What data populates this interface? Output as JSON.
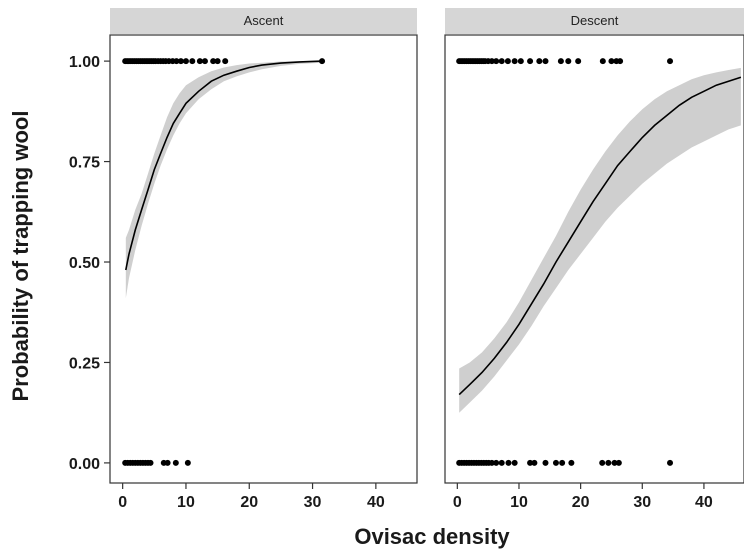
{
  "chart_data": {
    "type": "scatter",
    "xlabel": "Ovisac density",
    "ylabel": "Probability of trapping wool",
    "xlim": [
      -2,
      46.5
    ],
    "ylim": [
      -0.05,
      1.065
    ],
    "x_ticks": [
      0,
      10,
      20,
      30,
      40
    ],
    "x_tick_labels": [
      "0",
      "10",
      "20",
      "30",
      "40"
    ],
    "y_ticks": [
      0,
      0.25,
      0.5,
      0.75,
      1
    ],
    "y_tick_labels": [
      "0.00",
      "0.25",
      "0.50",
      "0.75",
      "1.00"
    ],
    "grid": false,
    "legend": "none",
    "colors": {
      "points": "#000000",
      "fit_line": "#000000",
      "ribbon": "#cfcfcf",
      "strip": "#d6d6d6",
      "panel_border": "#333333"
    },
    "panels": [
      {
        "strip_label": "Ascent",
        "points_y1": [
          0.4,
          0.7,
          1.0,
          1.3,
          1.6,
          1.9,
          2.2,
          2.5,
          2.8,
          3.1,
          3.4,
          3.7,
          4.0,
          4.3,
          4.6,
          4.9,
          5.2,
          5.6,
          6.0,
          6.4,
          6.8,
          7.3,
          7.9,
          8.5,
          9.2,
          10.0,
          11.0,
          12.2,
          13.0,
          14.3,
          15.0,
          16.2,
          31.5
        ],
        "points_y0": [
          0.4,
          0.8,
          1.2,
          1.6,
          2.0,
          2.4,
          2.8,
          3.2,
          3.6,
          4.0,
          4.4,
          6.5,
          7.1,
          8.4,
          10.3
        ],
        "fit": {
          "x": [
            0.5,
            1,
            2,
            3,
            4,
            5,
            6,
            7,
            8,
            9,
            10,
            12,
            14,
            16,
            18,
            20,
            22,
            25,
            28,
            31.5
          ],
          "y": [
            0.48,
            0.52,
            0.58,
            0.63,
            0.68,
            0.73,
            0.77,
            0.81,
            0.845,
            0.87,
            0.895,
            0.925,
            0.95,
            0.965,
            0.975,
            0.984,
            0.99,
            0.995,
            0.998,
            1.0
          ],
          "lower": [
            0.41,
            0.46,
            0.53,
            0.59,
            0.645,
            0.695,
            0.74,
            0.78,
            0.815,
            0.845,
            0.87,
            0.905,
            0.93,
            0.95,
            0.962,
            0.972,
            0.98,
            0.988,
            0.993,
            0.996
          ],
          "upper": [
            0.56,
            0.58,
            0.63,
            0.67,
            0.72,
            0.77,
            0.815,
            0.86,
            0.895,
            0.92,
            0.94,
            0.96,
            0.975,
            0.984,
            0.99,
            0.994,
            0.996,
            0.999,
            1.0,
            1.0
          ]
        }
      },
      {
        "strip_label": "Descent",
        "points_y1": [
          0.3,
          0.6,
          0.9,
          1.2,
          1.5,
          1.8,
          2.1,
          2.4,
          2.7,
          3.0,
          3.3,
          3.6,
          3.9,
          4.2,
          4.5,
          5.0,
          5.6,
          6.3,
          7.2,
          8.2,
          9.3,
          10.3,
          11.8,
          13.3,
          14.3,
          16.8,
          18.0,
          19.6,
          23.6,
          25.0,
          25.8,
          26.4,
          34.5
        ],
        "points_y0": [
          0.3,
          0.7,
          1.1,
          1.5,
          1.9,
          2.3,
          2.7,
          3.1,
          3.5,
          3.9,
          4.3,
          4.7,
          5.1,
          5.6,
          6.3,
          7.2,
          8.3,
          9.3,
          11.8,
          12.5,
          14.3,
          16.0,
          17.0,
          18.5,
          23.5,
          24.5,
          25.5,
          26.2,
          34.5
        ],
        "fit": {
          "x": [
            0.3,
            2,
            4,
            6,
            8,
            10,
            12,
            14,
            16,
            18,
            20,
            22,
            24,
            26,
            28,
            30,
            32,
            34,
            36,
            38,
            40,
            42,
            44,
            46
          ],
          "y": [
            0.17,
            0.195,
            0.225,
            0.26,
            0.3,
            0.345,
            0.395,
            0.445,
            0.5,
            0.55,
            0.6,
            0.65,
            0.695,
            0.74,
            0.775,
            0.81,
            0.84,
            0.865,
            0.89,
            0.91,
            0.925,
            0.94,
            0.95,
            0.96
          ],
          "lower": [
            0.125,
            0.15,
            0.18,
            0.215,
            0.255,
            0.295,
            0.34,
            0.39,
            0.435,
            0.48,
            0.52,
            0.56,
            0.6,
            0.635,
            0.665,
            0.695,
            0.72,
            0.745,
            0.765,
            0.785,
            0.8,
            0.815,
            0.83,
            0.84
          ],
          "upper": [
            0.235,
            0.25,
            0.275,
            0.31,
            0.35,
            0.4,
            0.455,
            0.51,
            0.565,
            0.625,
            0.68,
            0.73,
            0.775,
            0.815,
            0.85,
            0.88,
            0.905,
            0.925,
            0.94,
            0.955,
            0.965,
            0.972,
            0.978,
            0.983
          ]
        }
      }
    ]
  }
}
